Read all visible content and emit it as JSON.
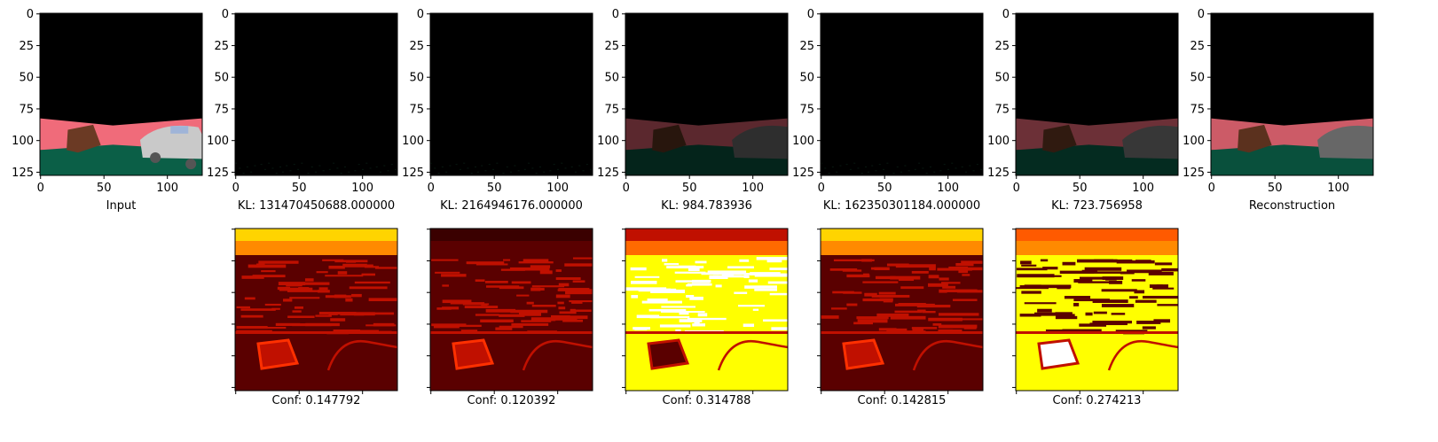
{
  "figure": {
    "top_panels": [
      {
        "caption": "Input",
        "kind": "input"
      },
      {
        "caption": "KL: 131470450688.000000",
        "kind": "dark"
      },
      {
        "caption": "KL: 2164946176.000000",
        "kind": "dark"
      },
      {
        "caption": "KL: 984.783936",
        "kind": "dim"
      },
      {
        "caption": "KL: 162350301184.000000",
        "kind": "dark"
      },
      {
        "caption": "KL: 723.756958",
        "kind": "dim2"
      },
      {
        "caption": "Reconstruction",
        "kind": "recon"
      }
    ],
    "bottom_panels": [
      {
        "caption": "Conf: 0.147792",
        "style": "low"
      },
      {
        "caption": "Conf: 0.120392",
        "style": "lower"
      },
      {
        "caption": "Conf: 0.314788",
        "style": "high"
      },
      {
        "caption": "Conf: 0.142815",
        "style": "low"
      },
      {
        "caption": "Conf: 0.274213",
        "style": "high2"
      }
    ],
    "colors": {
      "sky": "#000000",
      "building": "#f06b7a",
      "ground": "#0b5f47",
      "heat_dark": "#5a0000",
      "heat_red": "#c01000",
      "heat_orange": "#ff8a00",
      "heat_yellow": "#ffff00",
      "heat_white": "#ffffff"
    }
  },
  "chart_data": [
    {
      "type": "heatmap",
      "title": "Input",
      "xlim": [
        0,
        127
      ],
      "ylim": [
        127,
        0
      ],
      "xticks": [
        0,
        50,
        100
      ],
      "yticks": [
        0,
        25,
        50,
        75,
        100,
        125
      ]
    },
    {
      "type": "heatmap",
      "title": "KL: 131470450688.000000",
      "kl": 131470450688.0,
      "xticks": [
        0,
        50,
        100
      ],
      "yticks": [
        0,
        25,
        50,
        75,
        100,
        125
      ]
    },
    {
      "type": "heatmap",
      "title": "KL: 2164946176.000000",
      "kl": 2164946176.0,
      "xticks": [
        0,
        50,
        100
      ],
      "yticks": [
        0,
        25,
        50,
        75,
        100,
        125
      ]
    },
    {
      "type": "heatmap",
      "title": "KL: 984.783936",
      "kl": 984.783936,
      "xticks": [
        0,
        50,
        100
      ],
      "yticks": [
        0,
        25,
        50,
        75,
        100,
        125
      ]
    },
    {
      "type": "heatmap",
      "title": "KL: 162350301184.000000",
      "kl": 162350301184.0,
      "xticks": [
        0,
        50,
        100
      ],
      "yticks": [
        0,
        25,
        50,
        75,
        100,
        125
      ]
    },
    {
      "type": "heatmap",
      "title": "KL: 723.756958",
      "kl": 723.756958,
      "xticks": [
        0,
        50,
        100
      ],
      "yticks": [
        0,
        25,
        50,
        75,
        100,
        125
      ]
    },
    {
      "type": "heatmap",
      "title": "Reconstruction",
      "xticks": [
        0,
        50,
        100
      ],
      "yticks": [
        0,
        25,
        50,
        75,
        100,
        125
      ]
    },
    {
      "type": "heatmap",
      "title": "Conf: 0.147792",
      "conf": 0.147792
    },
    {
      "type": "heatmap",
      "title": "Conf: 0.120392",
      "conf": 0.120392
    },
    {
      "type": "heatmap",
      "title": "Conf: 0.314788",
      "conf": 0.314788
    },
    {
      "type": "heatmap",
      "title": "Conf: 0.142815",
      "conf": 0.142815
    },
    {
      "type": "heatmap",
      "title": "Conf: 0.274213",
      "conf": 0.274213
    }
  ]
}
